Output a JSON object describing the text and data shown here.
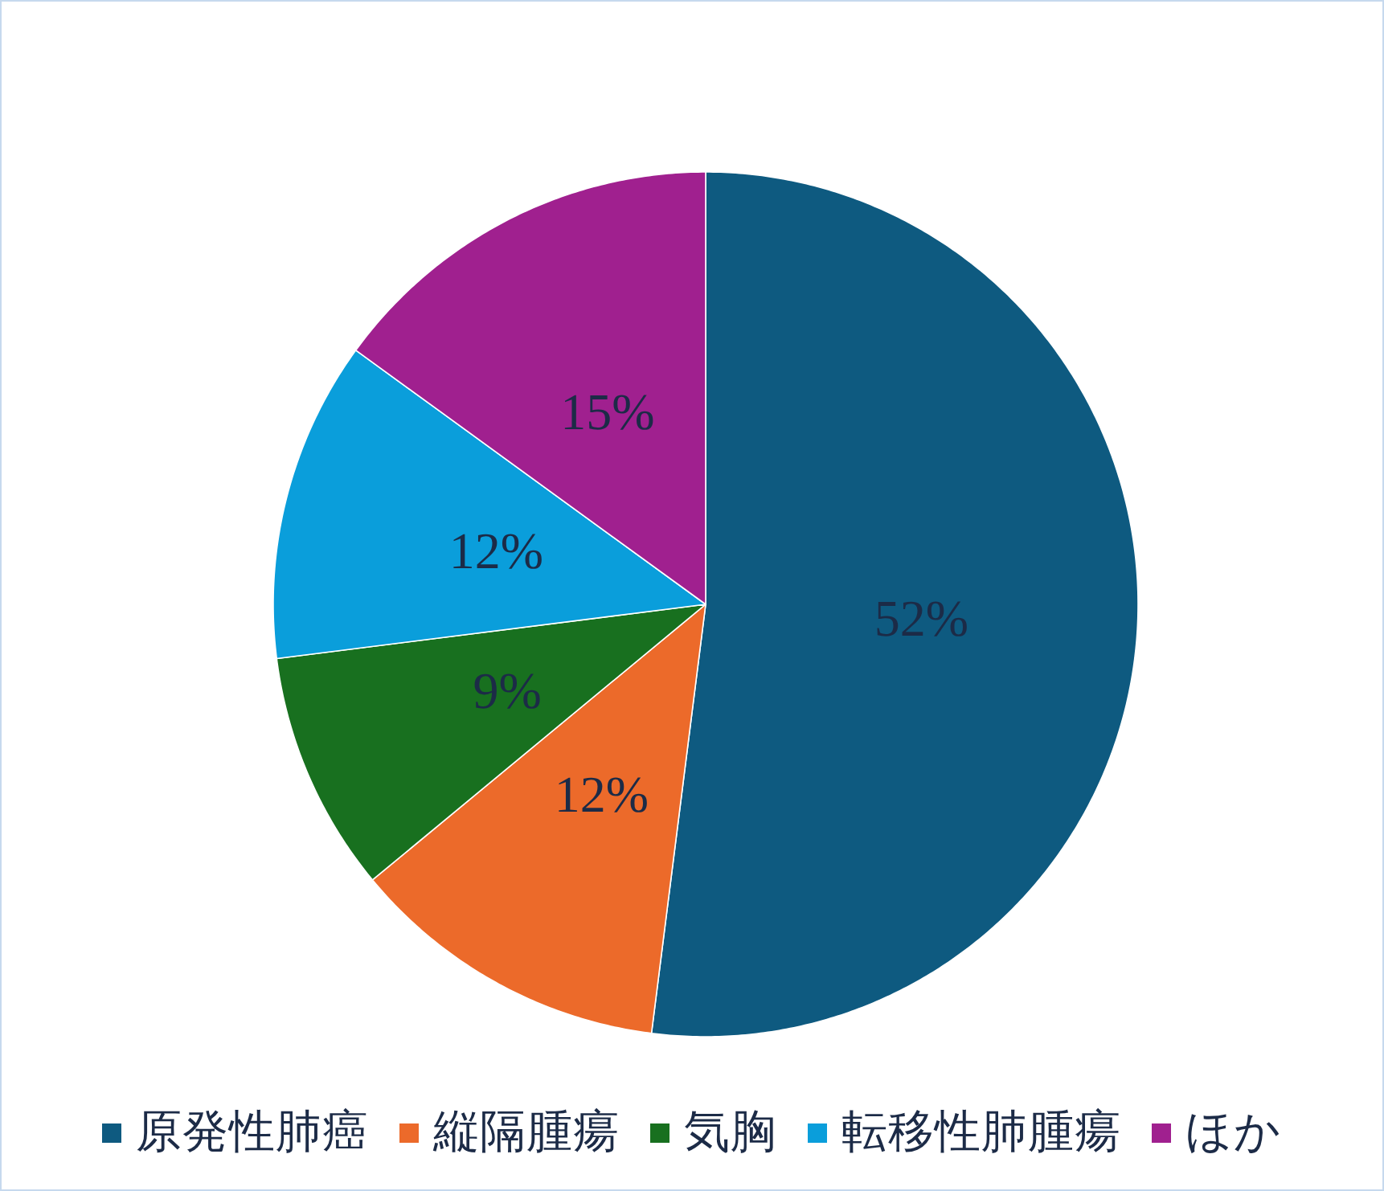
{
  "chart_data": {
    "type": "pie",
    "categories": [
      "原発性肺癌",
      "縦隔腫瘍",
      "気胸",
      "転移性肺腫瘍",
      "ほか"
    ],
    "values": [
      52,
      12,
      9,
      12,
      15
    ],
    "colors": [
      "#0e5a80",
      "#ec6a2a",
      "#18701f",
      "#0a9edb",
      "#a0208f"
    ],
    "value_labels": [
      "52%",
      "12%",
      "9%",
      "12%",
      "15%"
    ],
    "legend": "bottom"
  }
}
